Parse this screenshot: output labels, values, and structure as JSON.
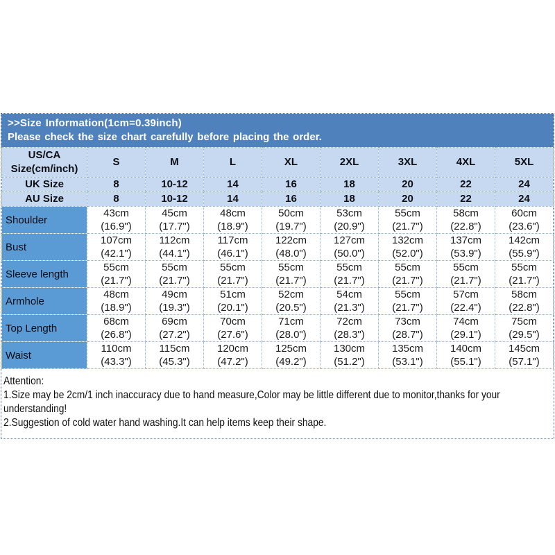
{
  "banner": {
    "title": ">>Size Information(1cm=0.39inch)",
    "subtitle": "Please check the size chart carefully before placing the order."
  },
  "table": {
    "corner_line1": "US/CA",
    "corner_line2": "Size(cm/inch)",
    "size_columns": [
      "S",
      "M",
      "L",
      "XL",
      "2XL",
      "3XL",
      "4XL",
      "5XL"
    ],
    "uk_row": {
      "label": "UK Size",
      "values": [
        "8",
        "10-12",
        "14",
        "16",
        "18",
        "20",
        "22",
        "24"
      ]
    },
    "au_row": {
      "label": "AU Size",
      "values": [
        "8",
        "10-12",
        "14",
        "16",
        "18",
        "20",
        "22",
        "24"
      ]
    },
    "measurement_rows": [
      {
        "label": "Shoulder",
        "cells": [
          {
            "cm": "43cm",
            "in": "(16.9\")"
          },
          {
            "cm": "45cm",
            "in": "(17.7\")"
          },
          {
            "cm": "48cm",
            "in": "(18.9\")"
          },
          {
            "cm": "50cm",
            "in": "(19.7\")"
          },
          {
            "cm": "53cm",
            "in": "(20.9\")"
          },
          {
            "cm": "55cm",
            "in": "(21.7\")"
          },
          {
            "cm": "58cm",
            "in": "(22.8\")"
          },
          {
            "cm": "60cm",
            "in": "(23.6\")"
          }
        ]
      },
      {
        "label": "Bust",
        "cells": [
          {
            "cm": "107cm",
            "in": "(42.1\")"
          },
          {
            "cm": "112cm",
            "in": "(44.1\")"
          },
          {
            "cm": "117cm",
            "in": "(46.1\")"
          },
          {
            "cm": "122cm",
            "in": "(48.0\")"
          },
          {
            "cm": "127cm",
            "in": "(50.0\")"
          },
          {
            "cm": "132cm",
            "in": "(52.0\")"
          },
          {
            "cm": "137cm",
            "in": "(53.9\")"
          },
          {
            "cm": "142cm",
            "in": "(55.9\")"
          }
        ]
      },
      {
        "label": "Sleeve length",
        "cells": [
          {
            "cm": "55cm",
            "in": "(21.7\")"
          },
          {
            "cm": "55cm",
            "in": "(21.7\")"
          },
          {
            "cm": "55cm",
            "in": "(21.7\")"
          },
          {
            "cm": "55cm",
            "in": "(21.7\")"
          },
          {
            "cm": "55cm",
            "in": "(21.7\")"
          },
          {
            "cm": "55cm",
            "in": "(21.7\")"
          },
          {
            "cm": "55cm",
            "in": "(21.7\")"
          },
          {
            "cm": "55cm",
            "in": "(21.7\")"
          }
        ]
      },
      {
        "label": "Armhole",
        "cells": [
          {
            "cm": "48cm",
            "in": "(18.9\")"
          },
          {
            "cm": "49cm",
            "in": "(19.3\")"
          },
          {
            "cm": "51cm",
            "in": "(20.1\")"
          },
          {
            "cm": "52cm",
            "in": "(20.5\")"
          },
          {
            "cm": "54cm",
            "in": "(21.3\")"
          },
          {
            "cm": "55cm",
            "in": "(21.7\")"
          },
          {
            "cm": "57cm",
            "in": "(22.4\")"
          },
          {
            "cm": "58cm",
            "in": "(22.8\")"
          }
        ]
      },
      {
        "label": "Top Length",
        "cells": [
          {
            "cm": "68cm",
            "in": "(26.8\")"
          },
          {
            "cm": "69cm",
            "in": "(27.2\")"
          },
          {
            "cm": "70cm",
            "in": "(27.6\")"
          },
          {
            "cm": "71cm",
            "in": "(28.0\")"
          },
          {
            "cm": "72cm",
            "in": "(28.3\")"
          },
          {
            "cm": "73cm",
            "in": "(28.7\")"
          },
          {
            "cm": "74cm",
            "in": "(29.1\")"
          },
          {
            "cm": "75cm",
            "in": "(29.5\")"
          }
        ]
      },
      {
        "label": "Waist",
        "cells": [
          {
            "cm": "110cm",
            "in": "(43.3\")"
          },
          {
            "cm": "115cm",
            "in": "(45.3\")"
          },
          {
            "cm": "120cm",
            "in": "(47.2\")"
          },
          {
            "cm": "125cm",
            "in": "(49.2\")"
          },
          {
            "cm": "130cm",
            "in": "(51.2\")"
          },
          {
            "cm": "135cm",
            "in": "(53.1\")"
          },
          {
            "cm": "140cm",
            "in": "(55.1\")"
          },
          {
            "cm": "145cm",
            "in": "(57.1\")"
          }
        ]
      }
    ]
  },
  "attention": {
    "heading": "Attention:",
    "line1": "1.Size may be 2cm/1 inch inaccuracy due to hand measure,Color may be little different due to monitor,thanks for your understanding!",
    "line2": "2.Suggestion of cold water hand washing.It can help items keep their shape."
  },
  "colors": {
    "banner_blue": "#4f81bd",
    "header_light": "#c6d9f1",
    "label_blue": "#5b9bd5",
    "grid_border": "#86aedd",
    "outer_border": "#5a6b85"
  }
}
